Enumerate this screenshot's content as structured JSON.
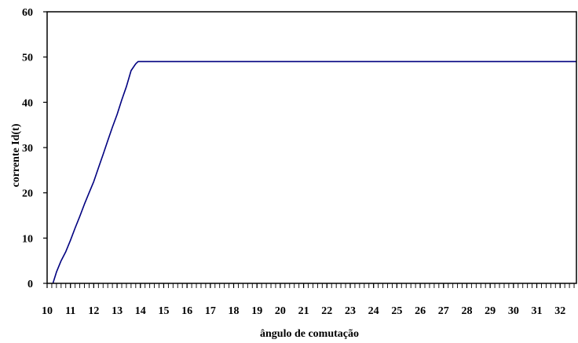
{
  "chart_data": {
    "type": "line",
    "title": "",
    "xlabel": "ângulo de comutação",
    "ylabel": "corrente Id(t)",
    "xlim": [
      10,
      32.7
    ],
    "ylim": [
      0,
      60
    ],
    "x_ticks": [
      10,
      11,
      12,
      13,
      14,
      15,
      16,
      17,
      18,
      19,
      20,
      21,
      22,
      23,
      24,
      25,
      26,
      27,
      28,
      29,
      30,
      31,
      32
    ],
    "x_tick_labels": [
      "10",
      "11",
      "12",
      "13",
      "14",
      "15",
      "16",
      "17",
      "18",
      "19",
      "20",
      "21",
      "22",
      "23",
      "24",
      "25",
      "26",
      "27",
      "28",
      "29",
      "30",
      "31",
      "32"
    ],
    "y_ticks": [
      0,
      10,
      20,
      30,
      40,
      50,
      60
    ],
    "y_tick_labels": [
      "0",
      "10",
      "20",
      "30",
      "40",
      "50",
      "60"
    ],
    "x_minor_step": 0.2,
    "grid": false,
    "legend": "none",
    "series": [
      {
        "color": "#000080",
        "x": [
          10.25,
          10.4,
          10.6,
          10.8,
          11.0,
          11.2,
          11.4,
          11.6,
          11.8,
          12.0,
          12.2,
          12.4,
          12.6,
          12.8,
          13.0,
          13.2,
          13.4,
          13.6,
          13.8,
          13.9,
          14.0,
          14.5,
          15,
          20,
          25,
          30,
          32.7
        ],
        "y": [
          0,
          2.5,
          5,
          7,
          9.5,
          12.2,
          14.8,
          17.5,
          20,
          22.5,
          25.5,
          28.5,
          31.5,
          34.5,
          37.3,
          40.5,
          43.5,
          47,
          48.5,
          49,
          49,
          49,
          49,
          49,
          49,
          49,
          49
        ]
      }
    ]
  }
}
